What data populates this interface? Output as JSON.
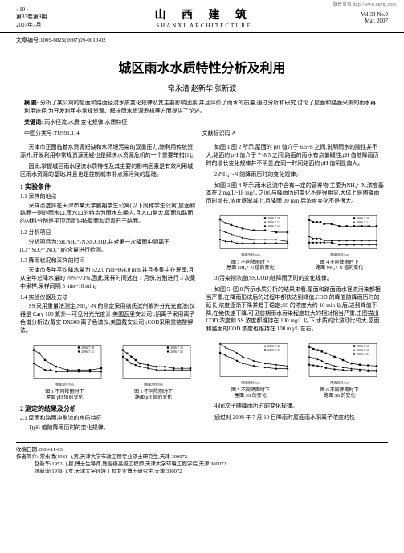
{
  "watermark": "维普资讯 http://www.cqvip.com",
  "header": {
    "page_num": "· 10 ·",
    "issue": "第33卷第9期",
    "date": "2007年3月",
    "journal_cn": "山 西 建 筑",
    "journal_en": "SHANXI ARCHITECTURE",
    "vol": "Vol.33 No.9",
    "month": "Mar. 2007"
  },
  "article_id": "文章编号:1009-6825(2007)09-0010-02",
  "title": "城区雨水水质特性分析及利用",
  "authors": "常永清  赵新华  张新波",
  "abstract": {
    "label": "摘  要:",
    "text": "分析了某公寓的屋面和路面径流水质变化规律及其主要影响因素,并且评价了雨水的质量,通过分析和研究,讨论了屋面和路面采集的雨水再利用途径,为开发利用非常规资源、解决雨水资源危机等方面提供了论述。"
  },
  "keywords": {
    "label": "关键词:",
    "text": "雨水径流,水质,变化规律,水质特征"
  },
  "classification": {
    "clc": "中图分类号:TU991.114",
    "doc_code": "文献标识码:A"
  },
  "left_col": {
    "intro_p1": "天津市正面临着水资源短缺和水环境污染的双重压力,除利用传统资源外,开发利用非常规资源无疑也是解决水资源危机的一个重要举措[1]。",
    "intro_p2": "因此,掌握城区雨水径流水质特性及其主要的影响因素是有效利用城区雨水资源的基础,并且也是控制城市非点源污染的基础。",
    "s1_title": "1 实验条件",
    "s1_1_title": "1.1 采样的地点",
    "s1_1_text": "采样点选择在天津市某大学鹏翔学生公寓(以下简称学生公寓)屋面和路面一侧的雨水口,雨水口的特点为雨水车棚内,且入口略大,屋面和路面的材料分别是平顶沥青油毡屋面和沥青石子路面。",
    "s1_2_title": "1.2 分析项目",
    "s1_2_text": "分析项目为:pH,NH₄⁺-N,SS,COD,并对第一次降雨中阴离子(Cl⁻,SO₄²⁻,NO₃⁻)的含量进行检测。",
    "s1_3_title": "1.3 降雨状况和采样的时间",
    "s1_3_p1": "天津市多年平均降水量为 522.0 mm~664.0 mm,并且多集中在夏季,且从全年总降水量的 70%~73%,因此,采样时间选在 7 月份,分别进行 3 次集中采样,采样间隔 5 min~10 min。",
    "s1_3_p2": "1.4 实验仪器及方法",
    "s1_4_text": "SS 采用重量法测定;NH₄⁺-N 的测定采用纳氏试剂紫外分光光度法(仪器是 Cary 100 紫外—可见分光光度计,美国瓦里安公司);阴离子采用离子色谱分析法(戴安 DX600 离子色谱仪,美国戴安公司);COD采用重铬酸钾法。",
    "chart1": {
      "type": "line",
      "title_line1": "图 1 不同降雨时下",
      "title_line2": "屋面 pH 值的变化",
      "xlabel": "降雨历时/min",
      "series": [
        {
          "name": "2006.7.10",
          "color": "#000000",
          "marker": "square",
          "x": [
            0,
            5,
            10,
            15,
            20,
            30,
            40,
            50,
            60
          ],
          "y": [
            8.2,
            8.0,
            7.6,
            7.4,
            7.2,
            7.0,
            7.0,
            7.0,
            7.1
          ]
        },
        {
          "name": "2006.7.31",
          "color": "#000000",
          "marker": "circle",
          "x": [
            0,
            5,
            10,
            15,
            20,
            30,
            40,
            50,
            60
          ],
          "y": [
            7.4,
            7.2,
            7.0,
            7.0,
            6.9,
            6.9,
            6.9,
            6.9,
            6.9
          ]
        }
      ],
      "xlim": [
        0,
        60
      ],
      "ylim": [
        6.5,
        8.5
      ],
      "background_color": "#ffffff"
    },
    "chart2": {
      "type": "line",
      "title_line1": "图 2 不同降雨时下",
      "title_line2": "路面 pH 值的变化",
      "xlabel": "降雨历时/min",
      "series": [
        {
          "name": "2006.7.10",
          "color": "#000000",
          "marker": "square",
          "x": [
            0,
            5,
            10,
            15,
            20,
            30,
            40,
            50,
            60,
            70,
            80
          ],
          "y": [
            8.2,
            8.0,
            7.8,
            7.6,
            7.4,
            7.3,
            7.2,
            7.2,
            7.1,
            7.1,
            7.1
          ]
        },
        {
          "name": "2006.7.31",
          "color": "#000000",
          "marker": "circle",
          "x": [
            0,
            5,
            10,
            15,
            20,
            30,
            40,
            50,
            60,
            70,
            80
          ],
          "y": [
            7.8,
            7.6,
            7.4,
            7.3,
            7.2,
            7.1,
            7.0,
            7.0,
            7.0,
            7.0,
            7.0
          ]
        }
      ],
      "xlim": [
        0,
        80
      ],
      "ylim": [
        6.5,
        8.5
      ],
      "background_color": "#ffffff"
    },
    "s2_title": "2 测定的结果及分析",
    "s2_1_title": "2.1 屋面和路面冲刷流的水质特征",
    "s2_1_text": "1)pH 值随降雨历时的变化规律。"
  },
  "right_col": {
    "p1": "如图 1,图 2 所示,屋面的 pH 值介于 6.5~8 之间,说明雨水的酸性并不大,路面的 pH 值介于 7~8.5 之间,路面的雨水有点偏碱性,pH 值随降雨历时的增长变化规律并不明显,在同一时间路面的 pH 值明显偏大。",
    "p2": "2)NH₄⁺-N 随降雨历时的变化规律。",
    "p3": "如图 3,图 4 所示,雨水径流中含有一定的营养物,主要为NH₄⁺-N,浓度基本在 2 mg/L~18 mg/L 之间,与降雨历时变化不是很明显,大体上是随降雨历时增长,浓度逐渐减小,且降雨 20 min 后浓度变化不是很大。",
    "chart3": {
      "type": "line",
      "title_line1": "图 3 不同降雨时下",
      "title_line2": "屋面 NH₄⁺-N 值的变化",
      "xlabel": "降雨历时/min",
      "series": [
        {
          "name": "2006.7.10",
          "color": "#000000",
          "marker": "square",
          "x": [
            0,
            5,
            10,
            15,
            20,
            30,
            40,
            50,
            60
          ],
          "y": [
            16,
            14,
            13,
            12,
            11,
            10,
            10,
            9,
            9
          ]
        },
        {
          "name": "2006.7.12",
          "color": "#000000",
          "marker": "triangle",
          "x": [
            0,
            5,
            10,
            15,
            20,
            30,
            40,
            50,
            60
          ],
          "y": [
            10,
            9,
            8,
            7,
            6,
            5,
            5,
            5,
            4
          ]
        },
        {
          "name": "2006.7.31",
          "color": "#000000",
          "marker": "circle",
          "x": [
            0,
            5,
            10,
            15,
            20,
            30,
            40,
            50,
            60
          ],
          "y": [
            5,
            4,
            4,
            3,
            3,
            3,
            3,
            3,
            3
          ]
        }
      ],
      "xlim": [
        0,
        60
      ],
      "ylim": [
        0,
        18
      ],
      "background_color": "#ffffff"
    },
    "chart4": {
      "type": "line",
      "title_line1": "图 4 不同降雨时下",
      "title_line2": "路面 NH₄⁺-N 值的变化",
      "xlabel": "降雨历时/min",
      "series": [
        {
          "name": "2006.7.10",
          "color": "#000000",
          "marker": "square",
          "x": [
            0,
            5,
            10,
            15,
            20,
            30,
            40,
            50,
            60,
            70,
            80,
            90
          ],
          "y": [
            14,
            13,
            13,
            13,
            12,
            12,
            11,
            11,
            11,
            11,
            11,
            11
          ]
        },
        {
          "name": "2006.7.12",
          "color": "#000000",
          "marker": "triangle",
          "x": [
            0,
            5,
            10,
            15,
            20,
            30,
            40,
            50,
            60,
            70,
            80,
            90
          ],
          "y": [
            6,
            5,
            5,
            5,
            4,
            4,
            4,
            4,
            4,
            4,
            4,
            4
          ]
        },
        {
          "name": "2006.7.31",
          "color": "#000000",
          "marker": "circle",
          "x": [
            0,
            5,
            10,
            15,
            20,
            30,
            40,
            50,
            60,
            70,
            80,
            90
          ],
          "y": [
            3,
            3,
            3,
            3,
            3,
            3,
            2,
            2,
            2,
            2,
            2,
            2
          ]
        }
      ],
      "xlim": [
        0,
        90
      ],
      "ylim": [
        0,
        16
      ],
      "background_color": "#ffffff"
    },
    "p4": "3)污染物浓度(SS,COD)随降雨历时的变化规律。",
    "p5": "如图 5~图 8 所示水质分析的结果来看,屋面和路面雨水径流污染都相当严重,在降雨形成后的过程中都快达到峰值,COD 的峰值随降雨历时的延长,浓度逐渐下降并趋于稳定;SS 的浓度大约 10 min 以后,达到峰值下降,在绝快速下降,可见前期雨水污染程度较大的相对相当严重,由图描出 COD 浓度和 SS 浓度都维持在 100 mg/L 以下,水质的比波动比较大,屋面和路面的COD 浓度也维持在 100 mg/L 左右。",
    "chart5": {
      "type": "line",
      "title_line1": "图 5 不同降雨时下",
      "title_line2": "屋面 SS 的变化",
      "xlabel": "降雨历时/min",
      "series": [
        {
          "name": "2006.7.12",
          "color": "#000000",
          "marker": "triangle",
          "x": [
            0,
            5,
            10,
            15,
            20,
            30,
            40,
            50,
            60
          ],
          "y": [
            2.5,
            2.2,
            2.0,
            1.8,
            1.5,
            1.2,
            1.0,
            0.9,
            0.8
          ]
        },
        {
          "name": "2006.7.31",
          "color": "#000000",
          "marker": "circle",
          "x": [
            0,
            5,
            10,
            15,
            20,
            30,
            40,
            50,
            60
          ],
          "y": [
            1.8,
            1.6,
            1.4,
            1.2,
            1.0,
            0.8,
            0.7,
            0.6,
            0.6
          ]
        }
      ],
      "xlim": [
        0,
        60
      ],
      "ylim": [
        0,
        2.5
      ],
      "background_color": "#ffffff"
    },
    "chart6": {
      "type": "line",
      "title_line1": "图 6 不同降雨时下",
      "title_line2": "路面 SS 的变化",
      "xlabel": "降雨历时/min",
      "series": [
        {
          "name": "2006.7.10",
          "color": "#000000",
          "marker": "square",
          "x": [
            0,
            5,
            10,
            15,
            20,
            30,
            40,
            50,
            60,
            70,
            80
          ],
          "y": [
            450,
            420,
            400,
            380,
            350,
            300,
            250,
            200,
            180,
            170,
            160
          ]
        },
        {
          "name": "2006.7.12",
          "color": "#000000",
          "marker": "triangle",
          "x": [
            0,
            5,
            10,
            15,
            20,
            30,
            40,
            50,
            60,
            70,
            80
          ],
          "y": [
            300,
            280,
            260,
            240,
            200,
            160,
            140,
            120,
            110,
            100,
            100
          ]
        },
        {
          "name": "2006.7.31",
          "color": "#000000",
          "marker": "circle",
          "x": [
            0,
            5,
            10,
            15,
            20,
            30,
            40,
            50,
            60,
            70,
            80
          ],
          "y": [
            180,
            170,
            160,
            150,
            130,
            110,
            100,
            90,
            85,
            80,
            80
          ]
        }
      ],
      "xlim": [
        0,
        80
      ],
      "ylim": [
        0,
        500
      ],
      "background_color": "#ffffff"
    },
    "p6": "4)同次子随降雨历时的变化规律。",
    "p7": "通过对 2006 年 7 月 10 日降雨时屋面雨水阴离子浓度的检"
  },
  "footer": {
    "received": "收稿日期:2006-11-03",
    "author_label": "作者简介:",
    "author1": "常永清(1981- ),男,天津大学市政工程专业硕士研究生,天津  300072",
    "author2": "赵新华(1952- ),男,博士生导师,教授级高级工程师,天津大学环境工程学院,天津  300072",
    "author3": "张新波(1978- ),女,天津大学环境工程专业博士研究生,天津  300072"
  }
}
